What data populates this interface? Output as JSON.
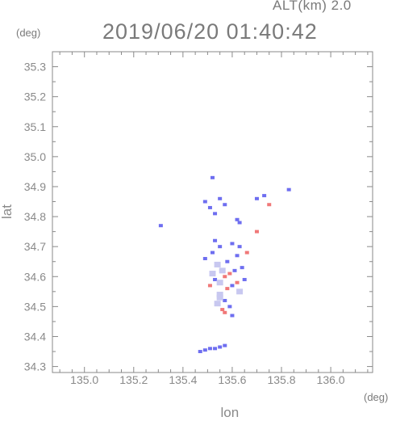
{
  "header": {
    "altitude": "ALT(km) 2.0",
    "datetime": "2019/06/20 01:40:42",
    "y_unit": "(deg)",
    "x_unit": "(deg)"
  },
  "chart_data": {
    "type": "scatter",
    "xlabel": "lon",
    "ylabel": "lat",
    "xlim": [
      134.87,
      136.17
    ],
    "ylim": [
      34.28,
      35.35
    ],
    "x_ticks": [
      "135.0",
      "135.2",
      "135.4",
      "135.6",
      "135.8",
      "136.0"
    ],
    "y_ticks": [
      "34.3",
      "34.4",
      "34.5",
      "34.6",
      "34.7",
      "34.8",
      "34.9",
      "35.0",
      "35.1",
      "35.2",
      "35.3"
    ],
    "grid": false,
    "colors": {
      "positive": "#f07878",
      "negative": "#6e6ef0",
      "weak": "#c8c8f0"
    },
    "points": [
      {
        "x": 135.52,
        "y": 34.93,
        "v": -1
      },
      {
        "x": 135.49,
        "y": 34.85,
        "v": -1
      },
      {
        "x": 135.51,
        "y": 34.83,
        "v": -1
      },
      {
        "x": 135.53,
        "y": 34.81,
        "v": -1
      },
      {
        "x": 135.55,
        "y": 34.86,
        "v": -1
      },
      {
        "x": 135.57,
        "y": 34.84,
        "v": -1
      },
      {
        "x": 135.62,
        "y": 34.79,
        "v": -1
      },
      {
        "x": 135.63,
        "y": 34.78,
        "v": -1
      },
      {
        "x": 135.7,
        "y": 34.86,
        "v": -1
      },
      {
        "x": 135.73,
        "y": 34.87,
        "v": -1
      },
      {
        "x": 135.75,
        "y": 34.84,
        "v": 1
      },
      {
        "x": 135.7,
        "y": 34.75,
        "v": 1
      },
      {
        "x": 135.83,
        "y": 34.89,
        "v": -1
      },
      {
        "x": 135.31,
        "y": 34.77,
        "v": -1
      },
      {
        "x": 135.53,
        "y": 34.72,
        "v": -1
      },
      {
        "x": 135.55,
        "y": 34.7,
        "v": -1
      },
      {
        "x": 135.52,
        "y": 34.68,
        "v": -1
      },
      {
        "x": 135.49,
        "y": 34.66,
        "v": -1
      },
      {
        "x": 135.6,
        "y": 34.71,
        "v": -1
      },
      {
        "x": 135.63,
        "y": 34.7,
        "v": -1
      },
      {
        "x": 135.66,
        "y": 34.68,
        "v": 1
      },
      {
        "x": 135.62,
        "y": 34.67,
        "v": -1
      },
      {
        "x": 135.58,
        "y": 34.65,
        "v": -1
      },
      {
        "x": 135.54,
        "y": 34.64,
        "v": 0
      },
      {
        "x": 135.56,
        "y": 34.62,
        "v": 0
      },
      {
        "x": 135.59,
        "y": 34.61,
        "v": 1
      },
      {
        "x": 135.61,
        "y": 34.62,
        "v": -1
      },
      {
        "x": 135.64,
        "y": 34.63,
        "v": -1
      },
      {
        "x": 135.57,
        "y": 34.6,
        "v": 1
      },
      {
        "x": 135.53,
        "y": 34.59,
        "v": -1
      },
      {
        "x": 135.51,
        "y": 34.57,
        "v": 1
      },
      {
        "x": 135.55,
        "y": 34.58,
        "v": 0
      },
      {
        "x": 135.6,
        "y": 34.57,
        "v": -1
      },
      {
        "x": 135.62,
        "y": 34.58,
        "v": 1
      },
      {
        "x": 135.65,
        "y": 34.59,
        "v": -1
      },
      {
        "x": 135.63,
        "y": 34.55,
        "v": 0
      },
      {
        "x": 135.58,
        "y": 34.56,
        "v": 1
      },
      {
        "x": 135.55,
        "y": 34.54,
        "v": 0
      },
      {
        "x": 135.57,
        "y": 34.52,
        "v": -1
      },
      {
        "x": 135.54,
        "y": 34.51,
        "v": 0
      },
      {
        "x": 135.59,
        "y": 34.5,
        "v": -1
      },
      {
        "x": 135.56,
        "y": 34.49,
        "v": 1
      },
      {
        "x": 135.57,
        "y": 34.48,
        "v": 1
      },
      {
        "x": 135.6,
        "y": 34.47,
        "v": -1
      },
      {
        "x": 135.55,
        "y": 34.53,
        "v": 0
      },
      {
        "x": 135.52,
        "y": 34.61,
        "v": 0
      },
      {
        "x": 135.47,
        "y": 34.35,
        "v": -1
      },
      {
        "x": 135.49,
        "y": 34.355,
        "v": -1
      },
      {
        "x": 135.51,
        "y": 34.36,
        "v": -1
      },
      {
        "x": 135.53,
        "y": 34.36,
        "v": -1
      },
      {
        "x": 135.55,
        "y": 34.365,
        "v": -1
      },
      {
        "x": 135.57,
        "y": 34.37,
        "v": -1
      }
    ]
  }
}
